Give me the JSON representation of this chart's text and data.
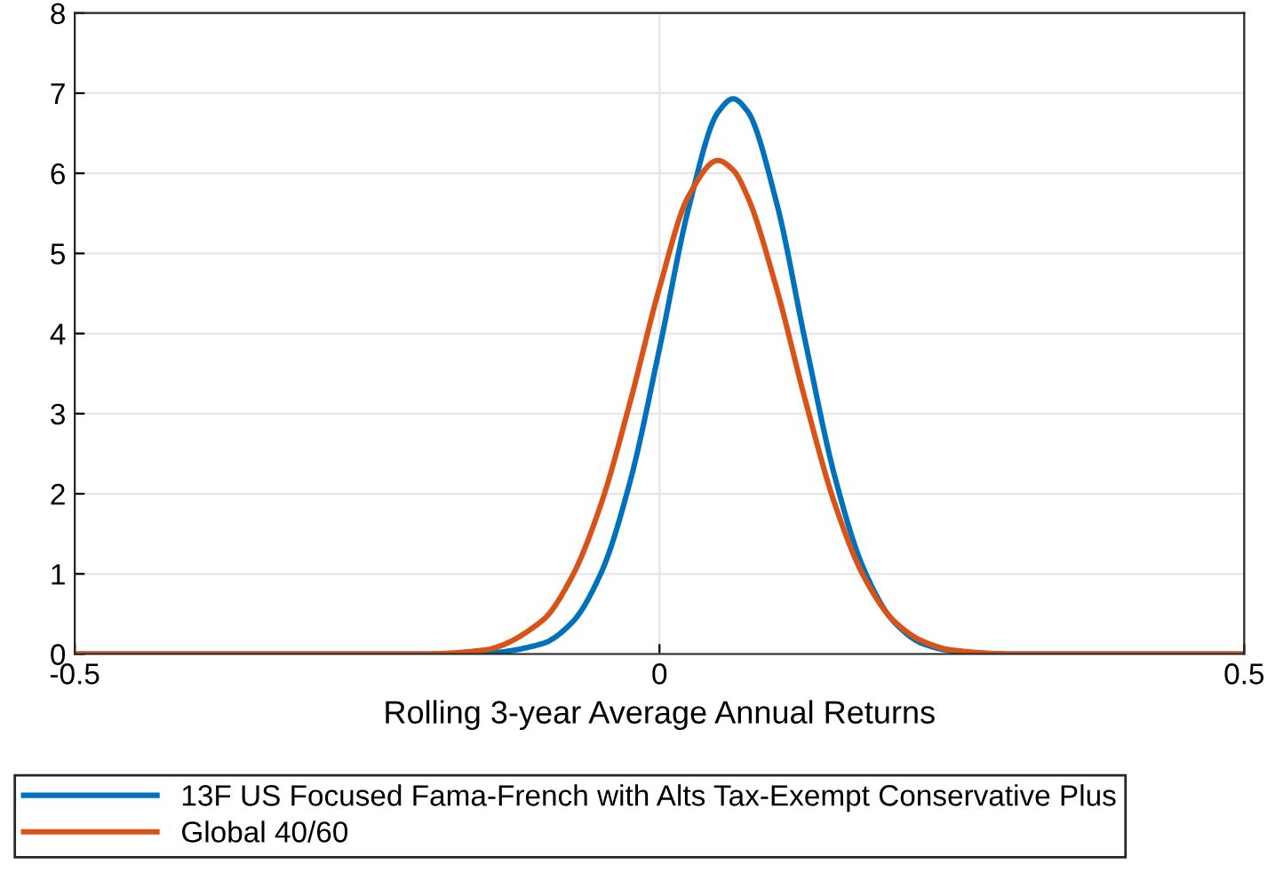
{
  "chart_data": {
    "type": "line",
    "xlabel": "Rolling 3-year Average Annual Returns",
    "x": [
      -0.5,
      -0.2,
      -0.15,
      -0.1,
      -0.075,
      -0.05,
      -0.025,
      0,
      0.025,
      0.05,
      0.063,
      0.075,
      0.1,
      0.125,
      0.15,
      0.175,
      0.2,
      0.225,
      0.25,
      0.3,
      0.5
    ],
    "series": [
      {
        "name": "13F US Focused Fama-French with Alts Tax-Exempt Conservative Plus",
        "color": "#0072bd",
        "values": [
          0,
          0,
          0.01,
          0.13,
          0.39,
          1.01,
          2.16,
          3.81,
          5.57,
          6.76,
          6.93,
          6.78,
          5.64,
          3.88,
          2.21,
          1.05,
          0.41,
          0.13,
          0.04,
          0,
          0
        ]
      },
      {
        "name": "Global 40/60",
        "color": "#d95319",
        "values": [
          0,
          0,
          0.05,
          0.42,
          0.96,
          1.87,
          3.15,
          4.57,
          5.72,
          6.16,
          6.04,
          5.72,
          4.57,
          3.15,
          1.87,
          0.96,
          0.42,
          0.16,
          0.05,
          0,
          0
        ]
      }
    ],
    "xlim": [
      -0.5,
      0.5
    ],
    "xticks": [
      -0.5,
      0,
      0.5
    ],
    "ylim": [
      0,
      8
    ],
    "yticks": [
      0,
      1,
      2,
      3,
      4,
      5,
      6,
      7,
      8
    ],
    "grid": true,
    "legend": "bottom",
    "line_style": "solid",
    "marker": "none"
  }
}
